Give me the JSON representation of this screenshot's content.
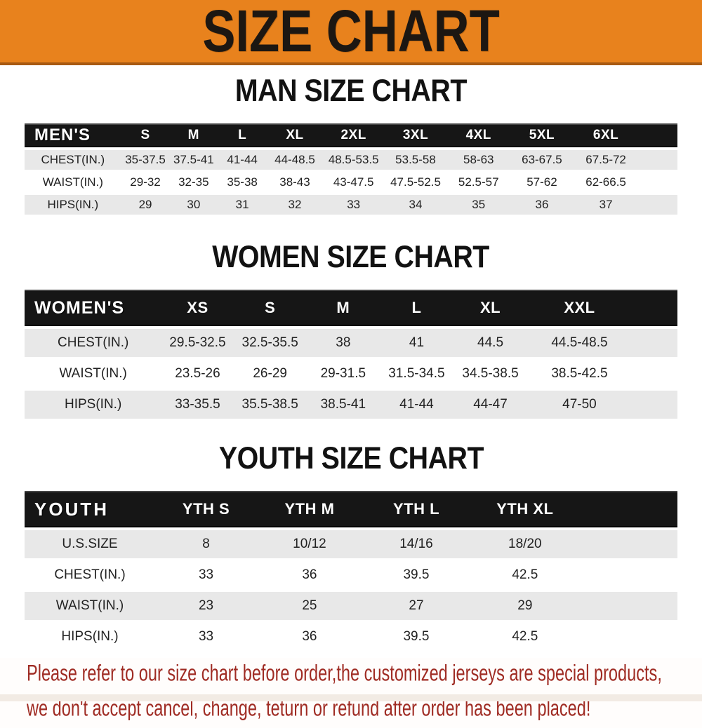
{
  "banner": {
    "title": "SIZE CHART"
  },
  "colors": {
    "banner_orange": "#e8821d",
    "banner_edge_dark": "#a85a12",
    "banner_text": "#1c1712",
    "table_header_black": "#161616",
    "table_header_text": "#ffffff",
    "row_gray": "#e8e8e8",
    "row_white": "#ffffff",
    "note_red": "#9f2b23"
  },
  "chart_data": [
    {
      "type": "table",
      "title": "MAN SIZE CHART",
      "header": [
        "MEN'S",
        "S",
        "M",
        "L",
        "XL",
        "2XL",
        "3XL",
        "4XL",
        "5XL",
        "6XL"
      ],
      "rows": [
        [
          "CHEST(IN.)",
          "35-37.5",
          "37.5-41",
          "41-44",
          "44-48.5",
          "48.5-53.5",
          "53.5-58",
          "58-63",
          "63-67.5",
          "67.5-72"
        ],
        [
          "WAIST(IN.)",
          "29-32",
          "32-35",
          "35-38",
          "38-43",
          "43-47.5",
          "47.5-52.5",
          "52.5-57",
          "57-62",
          "62-66.5"
        ],
        [
          "HIPS(IN.)",
          "29",
          "30",
          "31",
          "32",
          "33",
          "34",
          "35",
          "36",
          "37"
        ]
      ]
    },
    {
      "type": "table",
      "title": "WOMEN SIZE CHART",
      "header": [
        "WOMEN'S",
        "XS",
        "S",
        "M",
        "L",
        "XL",
        "XXL"
      ],
      "rows": [
        [
          "CHEST(IN.)",
          "29.5-32.5",
          "32.5-35.5",
          "38",
          "41",
          "44.5",
          "44.5-48.5"
        ],
        [
          "WAIST(IN.)",
          "23.5-26",
          "26-29",
          "29-31.5",
          "31.5-34.5",
          "34.5-38.5",
          "38.5-42.5"
        ],
        [
          "HIPS(IN.)",
          "33-35.5",
          "35.5-38.5",
          "38.5-41",
          "41-44",
          "44-47",
          "47-50"
        ]
      ]
    },
    {
      "type": "table",
      "title": "YOUTH SIZE CHART",
      "header": [
        "YOUTH",
        "YTH S",
        "YTH M",
        "YTH L",
        "YTH XL"
      ],
      "rows": [
        [
          "U.S.SIZE",
          "8",
          "10/12",
          "14/16",
          "18/20"
        ],
        [
          "CHEST(IN.)",
          "33",
          "36",
          "39.5",
          "42.5"
        ],
        [
          "WAIST(IN.)",
          "23",
          "25",
          "27",
          "29"
        ],
        [
          "HIPS(IN.)",
          "33",
          "36",
          "39.5",
          "42.5"
        ]
      ]
    }
  ],
  "note": {
    "lines": [
      "Please refer to our size chart before order,the customized jerseys are special products,",
      "we don't accept cancel, change, teturn or refund after order has been placed!"
    ]
  }
}
